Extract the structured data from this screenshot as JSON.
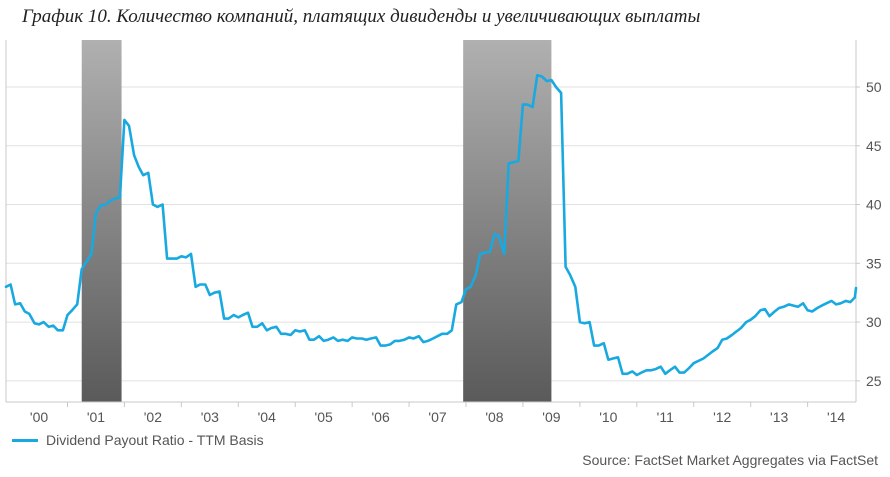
{
  "title": "График 10. Количество компаний, платящих дивиденды и увеличивающих выплаты",
  "source": "Source: FactSet Market Aggregates via FactSet",
  "colors": {
    "line": "#19a9e1",
    "recession_top": "#b0b0b0",
    "recession_bottom": "#5a5a5a",
    "grid": "#e1e1e1",
    "frame": "#c8c8c8",
    "plot_bg": "#ffffff"
  },
  "chart_data": {
    "type": "line",
    "title": "",
    "xlabel": "",
    "ylabel": "",
    "ylim": [
      23.2,
      54
    ],
    "xlim": [
      1999.92,
      2014.85
    ],
    "y_ticks": [
      25,
      30,
      35,
      40,
      45,
      50
    ],
    "y_axis_side": "right",
    "grid": "horizontal",
    "legend_position": "bottom-left",
    "x_tick_labels": [
      {
        "label": "'00",
        "x": 2000.5
      },
      {
        "label": "'01",
        "x": 2001.5
      },
      {
        "label": "'02",
        "x": 2002.5
      },
      {
        "label": "'03",
        "x": 2003.5
      },
      {
        "label": "'04",
        "x": 2004.5
      },
      {
        "label": "'05",
        "x": 2005.5
      },
      {
        "label": "'06",
        "x": 2006.5
      },
      {
        "label": "'07",
        "x": 2007.5
      },
      {
        "label": "'08",
        "x": 2008.5
      },
      {
        "label": "'09",
        "x": 2009.5
      },
      {
        "label": "'10",
        "x": 2010.5
      },
      {
        "label": "'11",
        "x": 2011.5
      },
      {
        "label": "'12",
        "x": 2012.5
      },
      {
        "label": "'13",
        "x": 2013.5
      },
      {
        "label": "'14",
        "x": 2014.5
      }
    ],
    "recessions": [
      [
        2001.25,
        2001.95
      ],
      [
        2007.95,
        2009.5
      ]
    ],
    "series": [
      {
        "name": "Dividend Payout Ratio - TTM Basis",
        "points": [
          [
            1999.92,
            33.0
          ],
          [
            2000.0,
            33.2
          ],
          [
            2000.08,
            31.5
          ],
          [
            2000.17,
            31.6
          ],
          [
            2000.25,
            30.9
          ],
          [
            2000.33,
            30.7
          ],
          [
            2000.42,
            29.9
          ],
          [
            2000.5,
            29.8
          ],
          [
            2000.58,
            30.0
          ],
          [
            2000.67,
            29.6
          ],
          [
            2000.75,
            29.7
          ],
          [
            2000.83,
            29.3
          ],
          [
            2000.92,
            29.3
          ],
          [
            2001.0,
            30.6
          ],
          [
            2001.08,
            31.0
          ],
          [
            2001.17,
            31.5
          ],
          [
            2001.25,
            34.5
          ],
          [
            2001.33,
            35.1
          ],
          [
            2001.42,
            35.8
          ],
          [
            2001.5,
            39.3
          ],
          [
            2001.58,
            39.9
          ],
          [
            2001.67,
            40.0
          ],
          [
            2001.75,
            40.3
          ],
          [
            2001.83,
            40.5
          ],
          [
            2001.92,
            40.6
          ],
          [
            2002.0,
            47.2
          ],
          [
            2002.08,
            46.7
          ],
          [
            2002.17,
            44.2
          ],
          [
            2002.25,
            43.2
          ],
          [
            2002.33,
            42.5
          ],
          [
            2002.42,
            42.7
          ],
          [
            2002.5,
            40.0
          ],
          [
            2002.58,
            39.8
          ],
          [
            2002.67,
            40.0
          ],
          [
            2002.75,
            35.4
          ],
          [
            2002.83,
            35.4
          ],
          [
            2002.92,
            35.4
          ],
          [
            2003.0,
            35.6
          ],
          [
            2003.08,
            35.5
          ],
          [
            2003.17,
            35.8
          ],
          [
            2003.25,
            33.0
          ],
          [
            2003.33,
            33.2
          ],
          [
            2003.42,
            33.2
          ],
          [
            2003.5,
            32.3
          ],
          [
            2003.58,
            32.5
          ],
          [
            2003.67,
            32.6
          ],
          [
            2003.75,
            30.3
          ],
          [
            2003.83,
            30.3
          ],
          [
            2003.92,
            30.6
          ],
          [
            2004.0,
            30.4
          ],
          [
            2004.08,
            30.6
          ],
          [
            2004.17,
            30.8
          ],
          [
            2004.25,
            29.6
          ],
          [
            2004.33,
            29.6
          ],
          [
            2004.42,
            29.9
          ],
          [
            2004.5,
            29.3
          ],
          [
            2004.58,
            29.5
          ],
          [
            2004.67,
            29.6
          ],
          [
            2004.75,
            29.0
          ],
          [
            2004.83,
            29.0
          ],
          [
            2004.92,
            28.9
          ],
          [
            2005.0,
            29.3
          ],
          [
            2005.08,
            29.2
          ],
          [
            2005.17,
            29.3
          ],
          [
            2005.25,
            28.5
          ],
          [
            2005.33,
            28.5
          ],
          [
            2005.42,
            28.8
          ],
          [
            2005.5,
            28.4
          ],
          [
            2005.58,
            28.5
          ],
          [
            2005.67,
            28.7
          ],
          [
            2005.75,
            28.4
          ],
          [
            2005.83,
            28.5
          ],
          [
            2005.92,
            28.4
          ],
          [
            2006.0,
            28.7
          ],
          [
            2006.08,
            28.6
          ],
          [
            2006.17,
            28.6
          ],
          [
            2006.25,
            28.5
          ],
          [
            2006.33,
            28.6
          ],
          [
            2006.42,
            28.7
          ],
          [
            2006.5,
            28.0
          ],
          [
            2006.58,
            28.0
          ],
          [
            2006.67,
            28.1
          ],
          [
            2006.75,
            28.4
          ],
          [
            2006.83,
            28.4
          ],
          [
            2006.92,
            28.5
          ],
          [
            2007.0,
            28.7
          ],
          [
            2007.08,
            28.6
          ],
          [
            2007.17,
            28.8
          ],
          [
            2007.25,
            28.3
          ],
          [
            2007.33,
            28.4
          ],
          [
            2007.42,
            28.6
          ],
          [
            2007.5,
            28.8
          ],
          [
            2007.58,
            29.0
          ],
          [
            2007.67,
            29.0
          ],
          [
            2007.75,
            29.3
          ],
          [
            2007.83,
            31.5
          ],
          [
            2007.92,
            31.7
          ],
          [
            2008.0,
            32.8
          ],
          [
            2008.08,
            33.0
          ],
          [
            2008.17,
            34.0
          ],
          [
            2008.25,
            35.8
          ],
          [
            2008.33,
            35.9
          ],
          [
            2008.42,
            36.0
          ],
          [
            2008.5,
            37.5
          ],
          [
            2008.58,
            37.3
          ],
          [
            2008.67,
            35.8
          ],
          [
            2008.75,
            43.5
          ],
          [
            2008.83,
            43.6
          ],
          [
            2008.92,
            43.7
          ],
          [
            2009.0,
            48.5
          ],
          [
            2009.08,
            48.5
          ],
          [
            2009.17,
            48.3
          ],
          [
            2009.25,
            51.0
          ],
          [
            2009.33,
            50.9
          ],
          [
            2009.42,
            50.5
          ],
          [
            2009.5,
            50.6
          ],
          [
            2009.58,
            50.0
          ],
          [
            2009.67,
            49.5
          ],
          [
            2009.75,
            34.7
          ],
          [
            2009.83,
            34.0
          ],
          [
            2009.92,
            33.0
          ],
          [
            2010.0,
            30.0
          ],
          [
            2010.08,
            29.9
          ],
          [
            2010.17,
            30.0
          ],
          [
            2010.25,
            28.0
          ],
          [
            2010.33,
            28.0
          ],
          [
            2010.42,
            28.2
          ],
          [
            2010.5,
            26.8
          ],
          [
            2010.58,
            26.9
          ],
          [
            2010.67,
            27.0
          ],
          [
            2010.75,
            25.6
          ],
          [
            2010.83,
            25.6
          ],
          [
            2010.92,
            25.8
          ],
          [
            2011.0,
            25.5
          ],
          [
            2011.08,
            25.7
          ],
          [
            2011.17,
            25.9
          ],
          [
            2011.25,
            25.9
          ],
          [
            2011.33,
            26.0
          ],
          [
            2011.42,
            26.2
          ],
          [
            2011.5,
            25.6
          ],
          [
            2011.58,
            25.9
          ],
          [
            2011.67,
            26.2
          ],
          [
            2011.75,
            25.7
          ],
          [
            2011.83,
            25.7
          ],
          [
            2011.92,
            26.1
          ],
          [
            2012.0,
            26.5
          ],
          [
            2012.08,
            26.7
          ],
          [
            2012.17,
            26.9
          ],
          [
            2012.25,
            27.2
          ],
          [
            2012.33,
            27.5
          ],
          [
            2012.42,
            27.8
          ],
          [
            2012.5,
            28.5
          ],
          [
            2012.58,
            28.6
          ],
          [
            2012.67,
            28.9
          ],
          [
            2012.75,
            29.2
          ],
          [
            2012.83,
            29.5
          ],
          [
            2012.92,
            30.0
          ],
          [
            2013.0,
            30.2
          ],
          [
            2013.08,
            30.5
          ],
          [
            2013.17,
            31.0
          ],
          [
            2013.25,
            31.1
          ],
          [
            2013.33,
            30.5
          ],
          [
            2013.42,
            30.9
          ],
          [
            2013.5,
            31.2
          ],
          [
            2013.58,
            31.3
          ],
          [
            2013.67,
            31.5
          ],
          [
            2013.75,
            31.4
          ],
          [
            2013.83,
            31.3
          ],
          [
            2013.92,
            31.6
          ],
          [
            2014.0,
            31.0
          ],
          [
            2014.08,
            30.9
          ],
          [
            2014.17,
            31.2
          ],
          [
            2014.25,
            31.4
          ],
          [
            2014.33,
            31.6
          ],
          [
            2014.42,
            31.8
          ],
          [
            2014.5,
            31.5
          ],
          [
            2014.58,
            31.6
          ],
          [
            2014.67,
            31.8
          ],
          [
            2014.75,
            31.7
          ],
          [
            2014.83,
            32.1
          ],
          [
            2014.85,
            32.9
          ]
        ]
      }
    ]
  }
}
